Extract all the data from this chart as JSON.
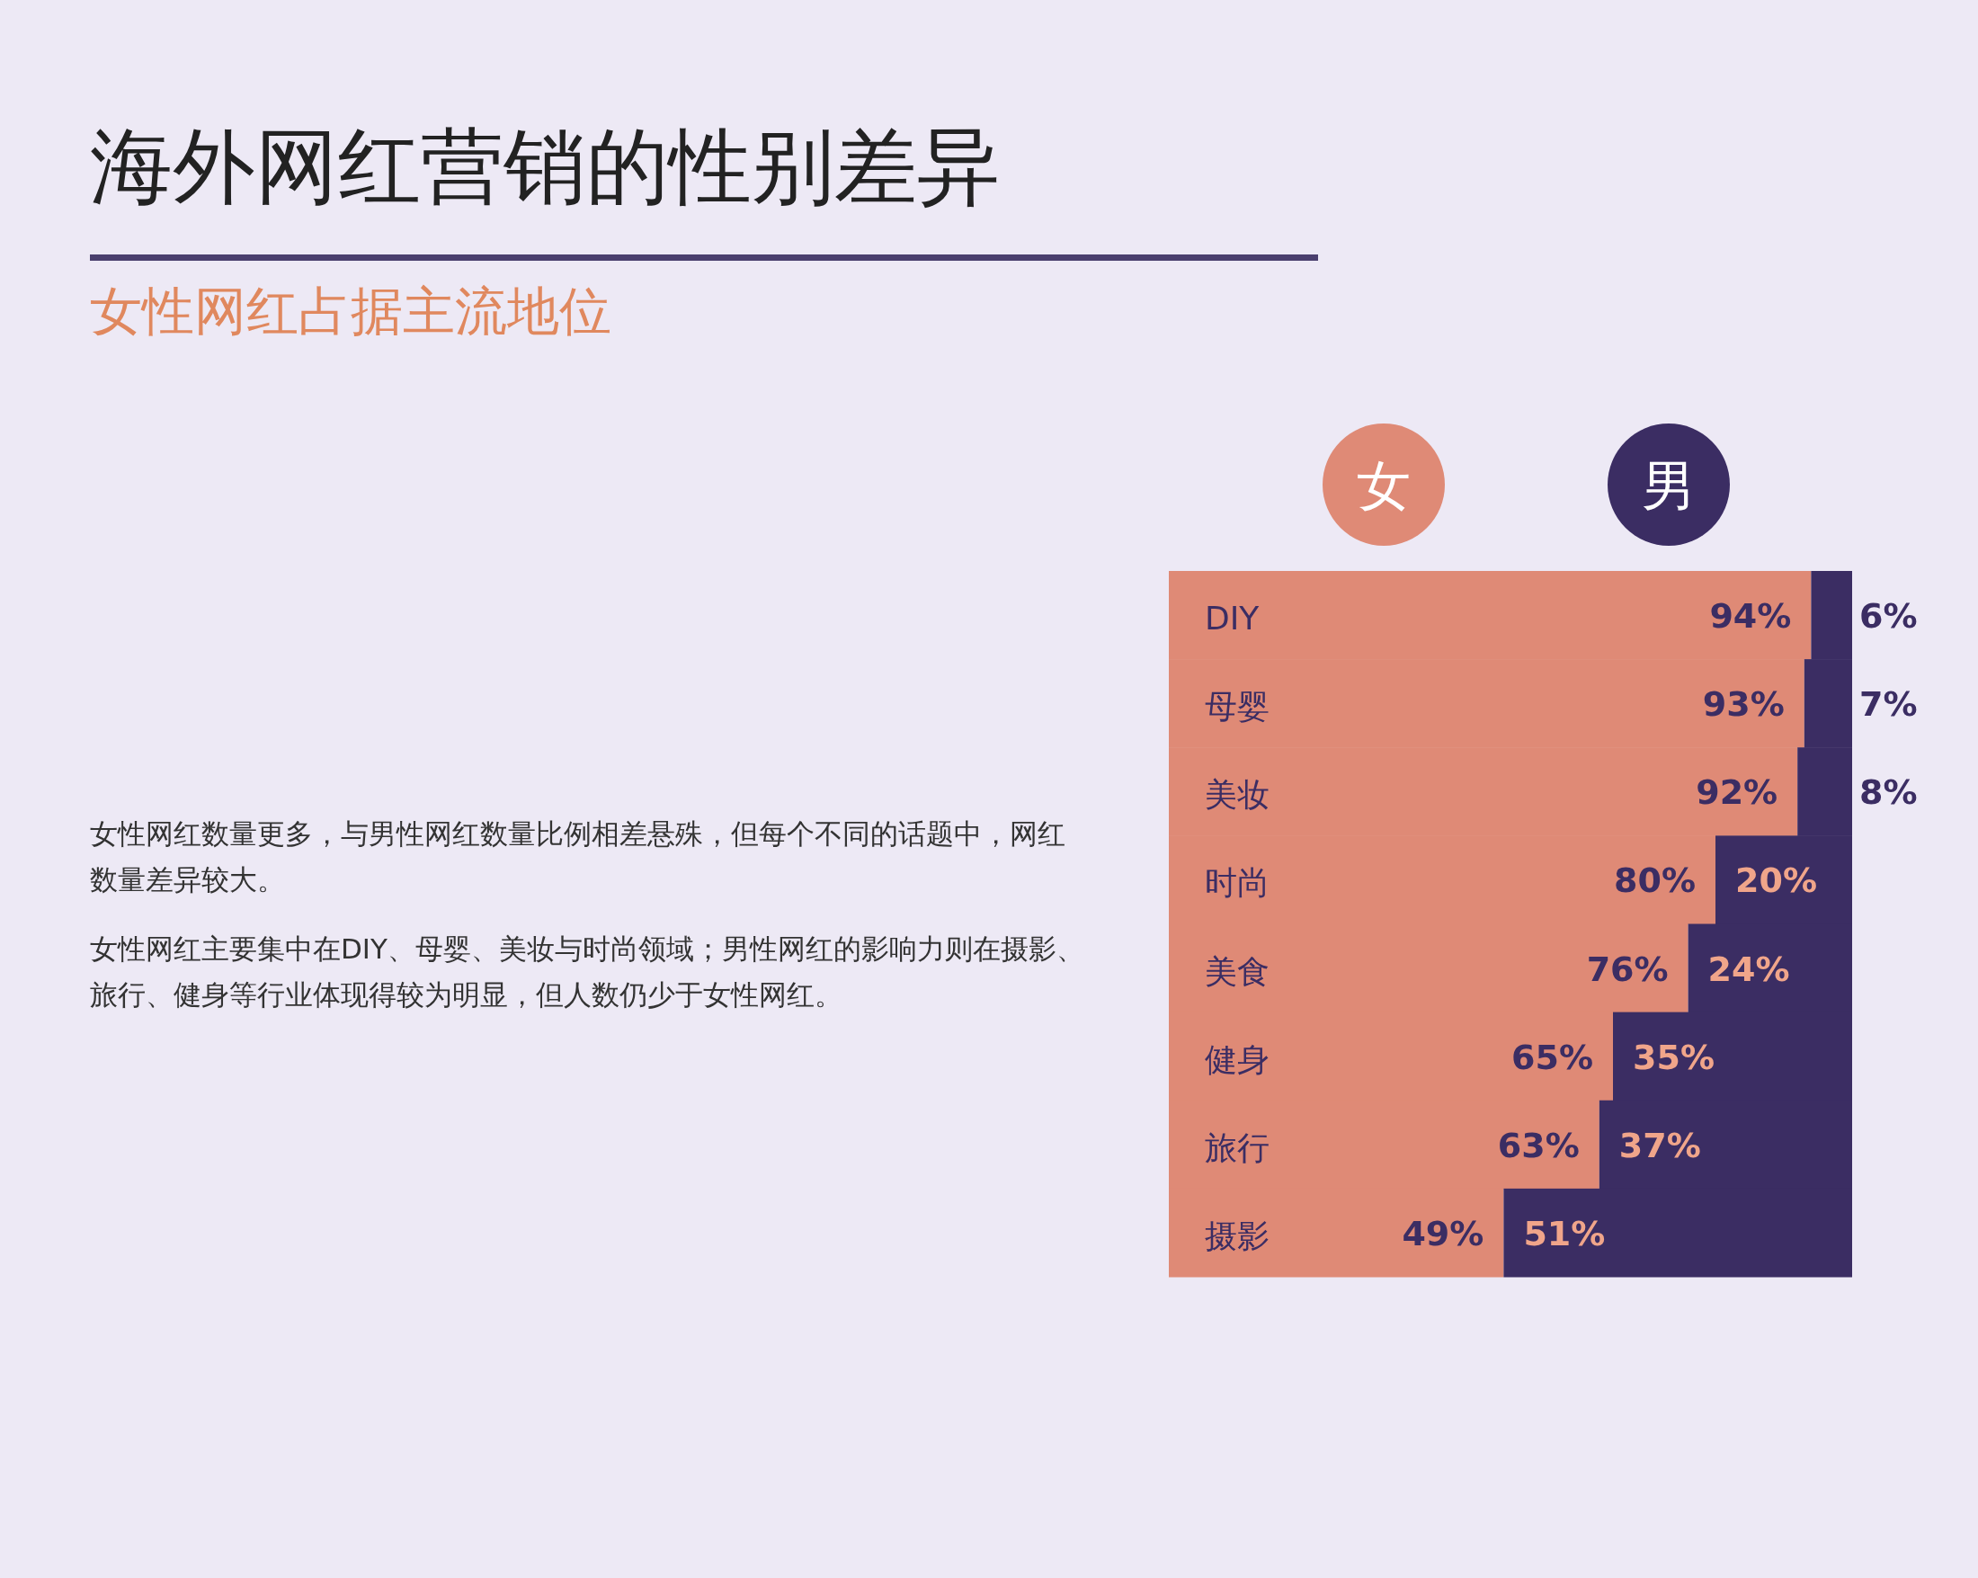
{
  "chart_data": {
    "type": "bar",
    "orientation": "horizontal",
    "stacked": true,
    "title": "海外网红营销的性别差异",
    "subtitle": "女性网红占据主流地位",
    "legend": "top",
    "categories": [
      "DIY",
      "母婴",
      "美妆",
      "时尚",
      "美食",
      "健身",
      "旅行",
      "摄影"
    ],
    "series": [
      {
        "name": "女",
        "color": "#df8a76",
        "values": [
          94,
          93,
          92,
          80,
          76,
          65,
          63,
          49
        ],
        "value_labels": [
          "94%",
          "93%",
          "92%",
          "80%",
          "76%",
          "65%",
          "63%",
          "49%"
        ]
      },
      {
        "name": "男",
        "color": "#3b2d63",
        "values": [
          6,
          7,
          8,
          20,
          24,
          35,
          37,
          51
        ],
        "value_labels": [
          "6%",
          "7%",
          "8%",
          "20%",
          "24%",
          "35%",
          "37%",
          "51%"
        ]
      }
    ],
    "annotations": [
      "女性网红数量更多，与男性网红数量比例相差悬殊，但每个不同的话题中，网红数量差异较大。",
      "女性网红主要集中在DIY、母婴、美妆与时尚领域；男性网红的影响力则在摄影、旅行、健身等行业体现得较为明显，但人数仍少于女性网红。"
    ]
  }
}
